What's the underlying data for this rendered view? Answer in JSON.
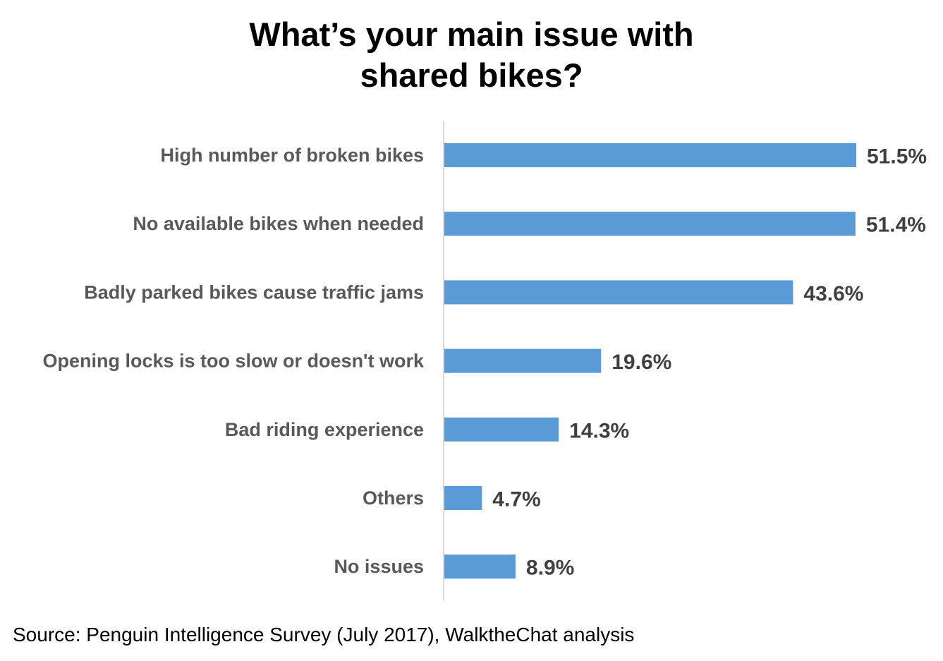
{
  "chart_data": {
    "type": "bar",
    "orientation": "horizontal",
    "title_lines": [
      "What’s your main issue with",
      "shared bikes?"
    ],
    "categories": [
      "High number of broken bikes",
      "No available bikes when needed",
      "Badly parked bikes cause traffic jams",
      "Opening locks is too slow or doesn't work",
      "Bad riding experience",
      "Others",
      "No issues"
    ],
    "values": [
      51.5,
      51.4,
      43.6,
      19.6,
      14.3,
      4.7,
      8.9
    ],
    "value_labels": [
      "51.5%",
      "51.4%",
      "43.6%",
      "19.6%",
      "14.3%",
      "4.7%",
      "8.9%"
    ],
    "unit": "%",
    "xlim": [
      0,
      51.5
    ],
    "grid": false,
    "legend": "none",
    "bar_color": "#5b9bd5",
    "axis_color": "#d9d9d9"
  },
  "source": "Source: Penguin Intelligence Survey (July 2017), WalktheChat analysis"
}
